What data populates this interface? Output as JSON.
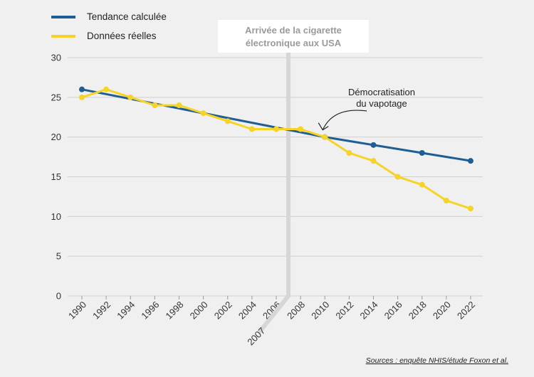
{
  "chart_data": {
    "type": "line",
    "x": [
      1990,
      1992,
      1994,
      1996,
      1998,
      2000,
      2002,
      2004,
      2006,
      2008,
      2010,
      2012,
      2014,
      2016,
      2018,
      2020,
      2022
    ],
    "x_tick_labels": [
      "1990",
      "1992",
      "1994",
      "1996",
      "1998",
      "2000",
      "2002",
      "2004",
      "2006",
      "2008",
      "2010",
      "2012",
      "2014",
      "2016",
      "2018",
      "2020",
      "2022"
    ],
    "ylim": [
      0,
      30
    ],
    "y_ticks": [
      0,
      5,
      10,
      15,
      20,
      25,
      30
    ],
    "grid": true,
    "legend_position": "top-left",
    "series": [
      {
        "name": "Tendance calculée",
        "color": "#1f5e94",
        "points": [
          [
            1990,
            26
          ],
          [
            2010,
            20
          ],
          [
            2014,
            19
          ],
          [
            2018,
            18
          ],
          [
            2022,
            17
          ]
        ]
      },
      {
        "name": "Données réelles",
        "color": "#f5d327",
        "points": [
          [
            1990,
            25
          ],
          [
            1992,
            26
          ],
          [
            1994,
            25
          ],
          [
            1996,
            24
          ],
          [
            1998,
            24
          ],
          [
            2000,
            23
          ],
          [
            2002,
            22
          ],
          [
            2004,
            21
          ],
          [
            2006,
            21
          ],
          [
            2008,
            21
          ],
          [
            2010,
            20
          ],
          [
            2012,
            18
          ],
          [
            2014,
            17
          ],
          [
            2016,
            15
          ],
          [
            2018,
            14
          ],
          [
            2020,
            12
          ],
          [
            2022,
            11
          ]
        ]
      }
    ],
    "annotations": {
      "event": {
        "x": 2007,
        "label": "2007",
        "text_lines": [
          "Arrivée de la cigarette",
          "électronique aux USA"
        ]
      },
      "callout": {
        "x": 2010,
        "y": 20,
        "text_lines": [
          "Démocratisation",
          "du vapotage"
        ]
      }
    },
    "source": "Sources : enquête NHIS/étude Foxon et al."
  }
}
